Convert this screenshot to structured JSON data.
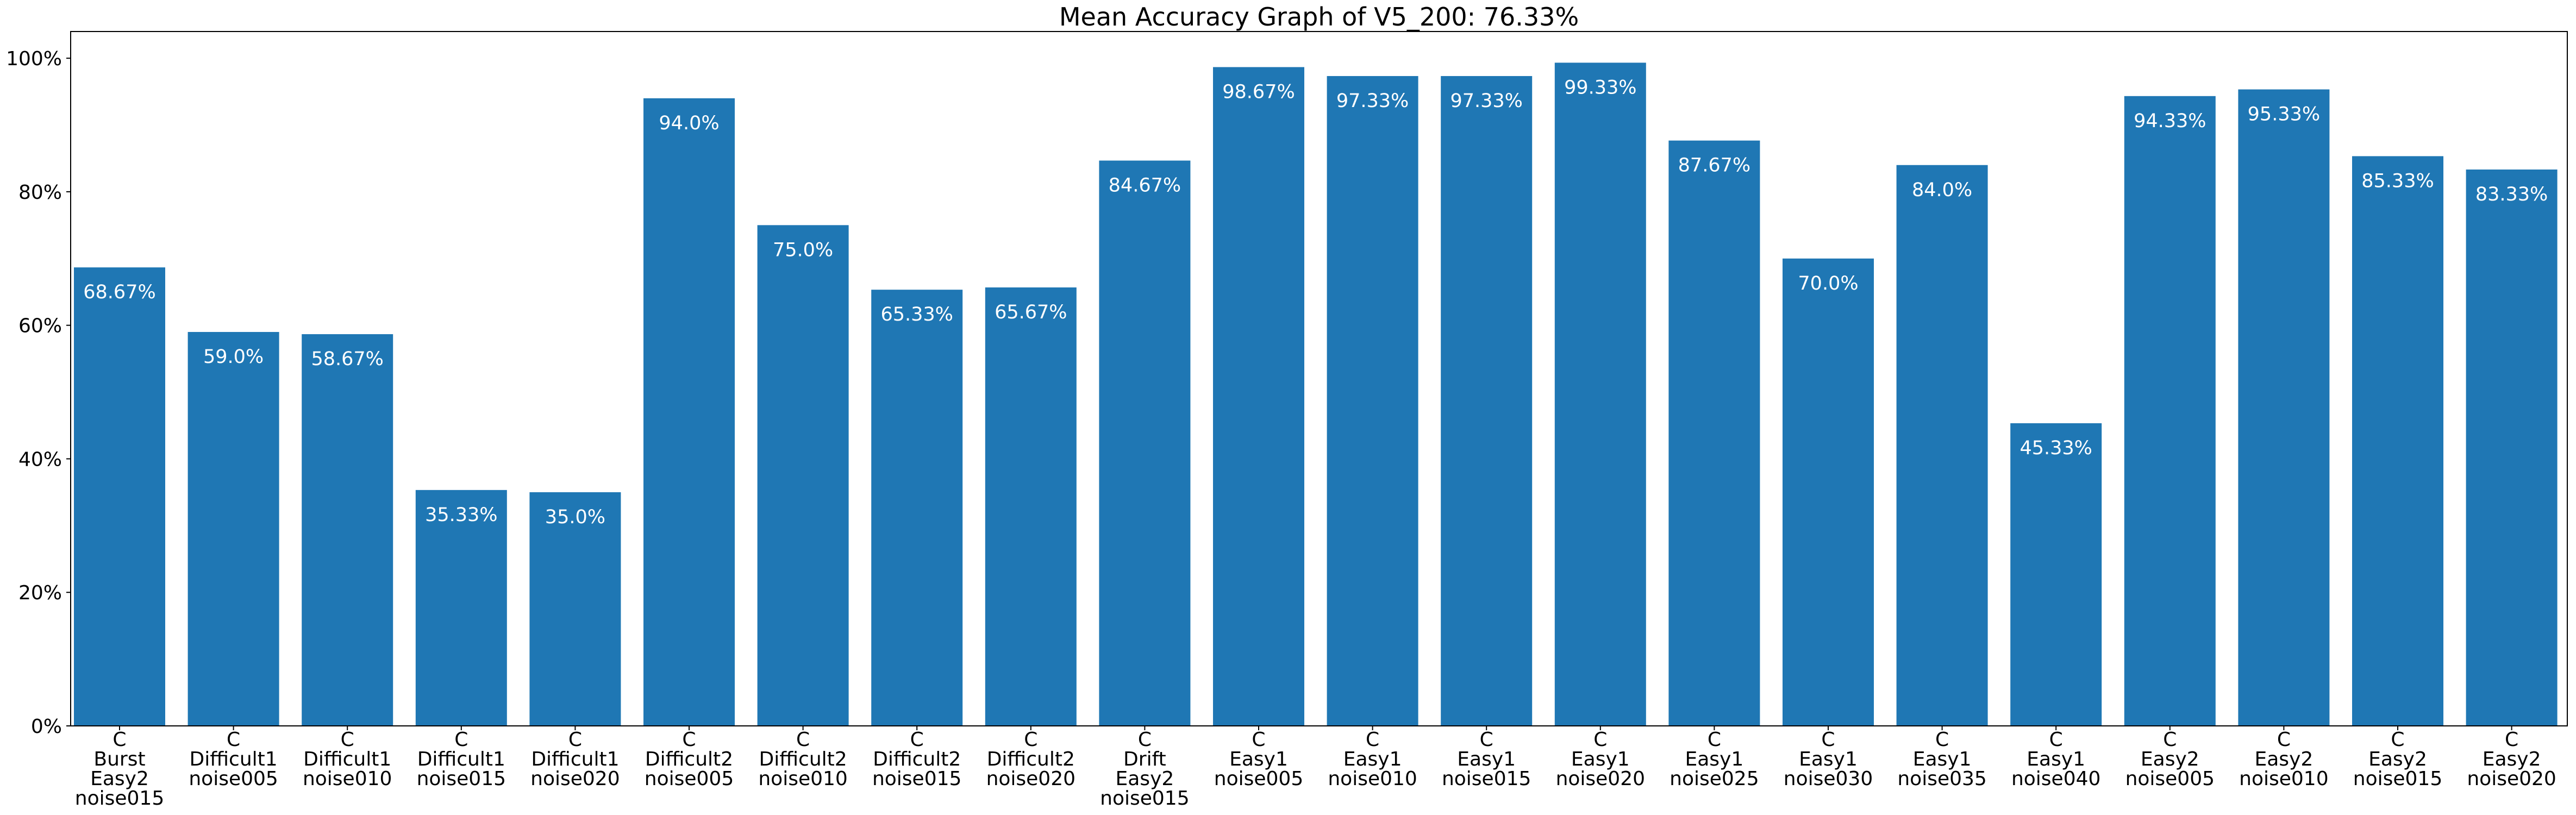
{
  "chart_data": {
    "type": "bar",
    "title": "Mean Accuracy Graph of V5_200: 76.33%",
    "xlabel": "",
    "ylabel": "",
    "ylim": [
      0,
      104
    ],
    "yticks": [
      0,
      20,
      40,
      60,
      80,
      100
    ],
    "ytick_labels": [
      "0%",
      "20%",
      "40%",
      "60%",
      "80%",
      "100%"
    ],
    "grid": false,
    "bar_color": "#1f77b4",
    "categories": [
      [
        "C",
        "Burst",
        "Easy2",
        "noise015"
      ],
      [
        "C",
        "Difficult1",
        "noise005"
      ],
      [
        "C",
        "Difficult1",
        "noise010"
      ],
      [
        "C",
        "Difficult1",
        "noise015"
      ],
      [
        "C",
        "Difficult1",
        "noise020"
      ],
      [
        "C",
        "Difficult2",
        "noise005"
      ],
      [
        "C",
        "Difficult2",
        "noise010"
      ],
      [
        "C",
        "Difficult2",
        "noise015"
      ],
      [
        "C",
        "Difficult2",
        "noise020"
      ],
      [
        "C",
        "Drift",
        "Easy2",
        "noise015"
      ],
      [
        "C",
        "Easy1",
        "noise005"
      ],
      [
        "C",
        "Easy1",
        "noise010"
      ],
      [
        "C",
        "Easy1",
        "noise015"
      ],
      [
        "C",
        "Easy1",
        "noise020"
      ],
      [
        "C",
        "Easy1",
        "noise025"
      ],
      [
        "C",
        "Easy1",
        "noise030"
      ],
      [
        "C",
        "Easy1",
        "noise035"
      ],
      [
        "C",
        "Easy1",
        "noise040"
      ],
      [
        "C",
        "Easy2",
        "noise005"
      ],
      [
        "C",
        "Easy2",
        "noise010"
      ],
      [
        "C",
        "Easy2",
        "noise015"
      ],
      [
        "C",
        "Easy2",
        "noise020"
      ]
    ],
    "values": [
      68.67,
      59.0,
      58.67,
      35.33,
      35.0,
      94.0,
      75.0,
      65.33,
      65.67,
      84.67,
      98.67,
      97.33,
      97.33,
      99.33,
      87.67,
      70.0,
      84.0,
      45.33,
      94.33,
      95.33,
      85.33,
      83.33
    ],
    "value_labels": [
      "68.67%",
      "59.0%",
      "58.67%",
      "35.33%",
      "35.0%",
      "94.0%",
      "75.0%",
      "65.33%",
      "65.67%",
      "84.67%",
      "98.67%",
      "97.33%",
      "97.33%",
      "99.33%",
      "87.67%",
      "70.0%",
      "84.0%",
      "45.33%",
      "94.33%",
      "95.33%",
      "85.33%",
      "83.33%"
    ]
  }
}
